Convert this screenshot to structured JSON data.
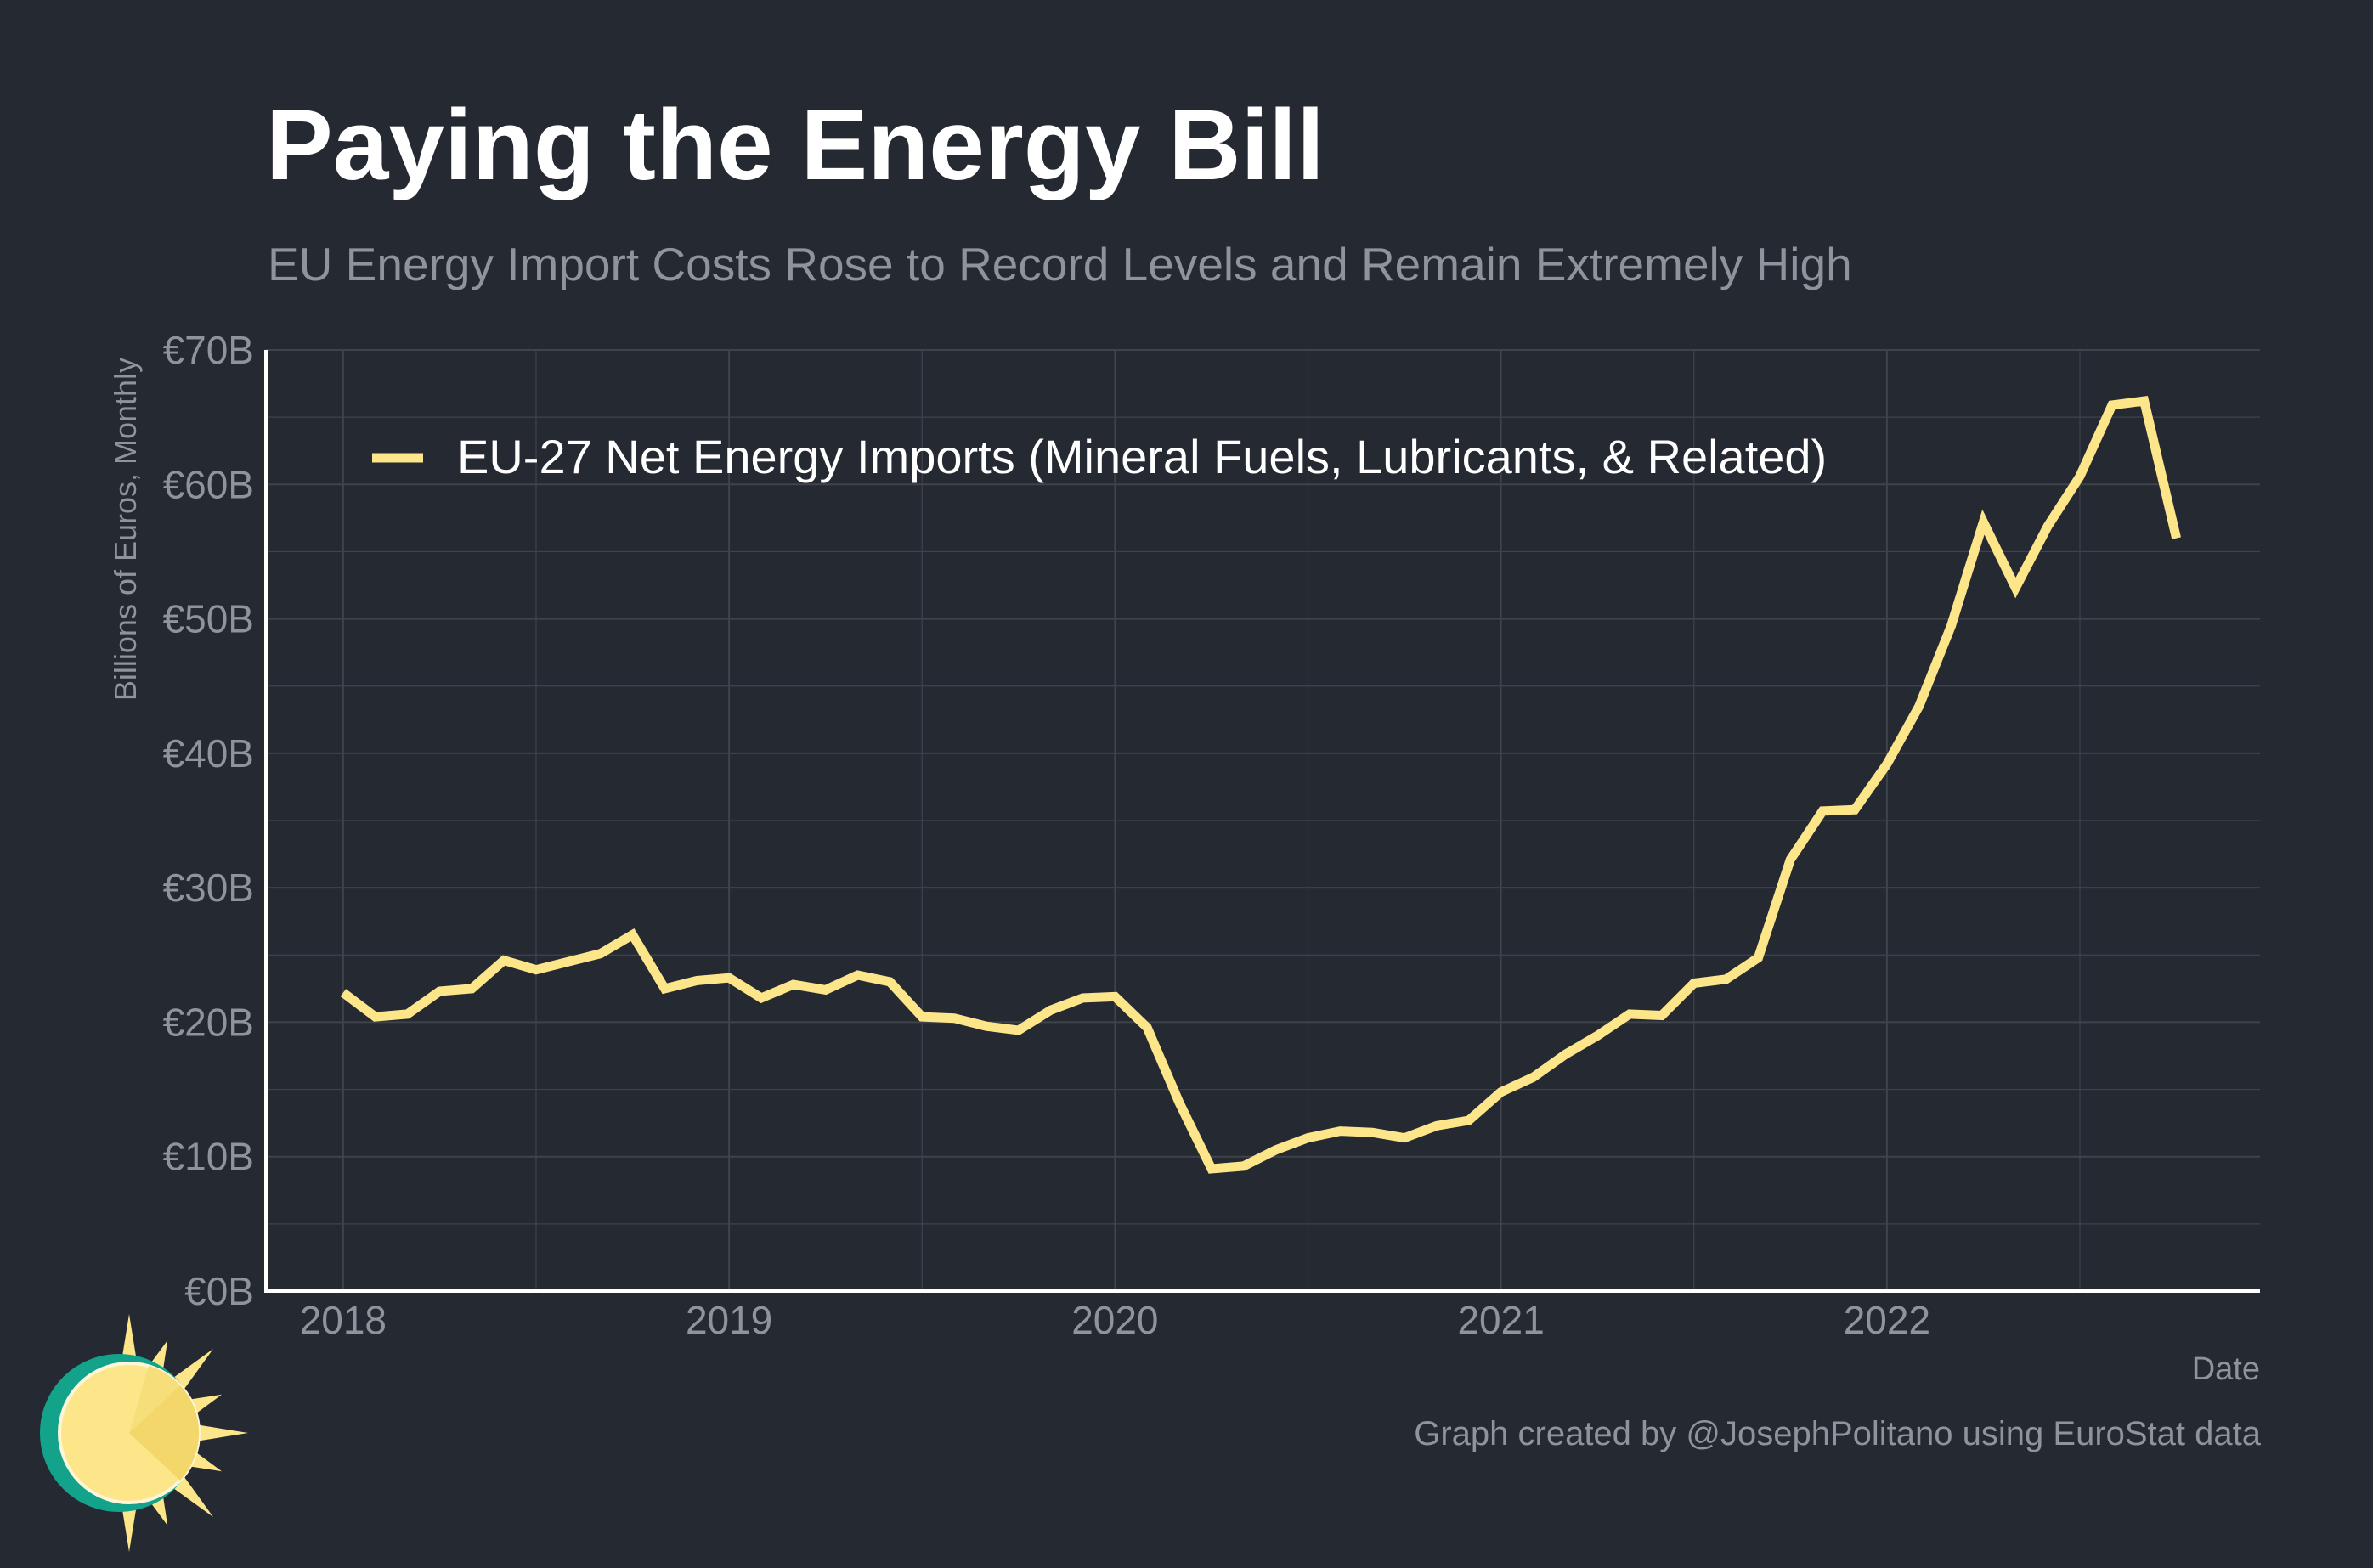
{
  "title": "Paying the Energy Bill",
  "subtitle": "EU Energy Import Costs Rose to Record Levels and Remain Extremely High",
  "credit": "Graph created by @JosephPolitano using EuroStat data",
  "colors": {
    "background": "#252932",
    "series": "#fde68a",
    "grid": "#3f434c",
    "axis": "#ffffff",
    "text_muted": "#8f939b"
  },
  "chart_data": {
    "type": "line",
    "title": "Paying the Energy Bill",
    "subtitle": "EU Energy Import Costs Rose to Record Levels and Remain Extremely High",
    "xlabel": "Date",
    "ylabel": "Billions of Euros, Monthly",
    "ylim": [
      0,
      70
    ],
    "y_ticks": [
      0,
      10,
      20,
      30,
      40,
      50,
      60,
      70
    ],
    "y_tick_labels": [
      "€0B",
      "€10B",
      "€20B",
      "€30B",
      "€40B",
      "€50B",
      "€60B",
      "€70B"
    ],
    "x_ticks": [
      "2018-01",
      "2019-01",
      "2020-01",
      "2021-01",
      "2022-01"
    ],
    "x_tick_labels": [
      "2018",
      "2019",
      "2020",
      "2021",
      "2022"
    ],
    "grid": true,
    "legend_position": "top-left",
    "series": [
      {
        "name": "EU-27 Net Energy Imports (Mineral Fuels, Lubricants, & Related)",
        "color": "#fde68a",
        "x": [
          "2018-01",
          "2018-02",
          "2018-03",
          "2018-04",
          "2018-05",
          "2018-06",
          "2018-07",
          "2018-08",
          "2018-09",
          "2018-10",
          "2018-11",
          "2018-12",
          "2019-01",
          "2019-02",
          "2019-03",
          "2019-04",
          "2019-05",
          "2019-06",
          "2019-07",
          "2019-08",
          "2019-09",
          "2019-10",
          "2019-11",
          "2019-12",
          "2020-01",
          "2020-02",
          "2020-03",
          "2020-04",
          "2020-05",
          "2020-06",
          "2020-07",
          "2020-08",
          "2020-09",
          "2020-10",
          "2020-11",
          "2020-12",
          "2021-01",
          "2021-02",
          "2021-03",
          "2021-04",
          "2021-05",
          "2021-06",
          "2021-07",
          "2021-08",
          "2021-09",
          "2021-10",
          "2021-11",
          "2021-12",
          "2022-01",
          "2022-02",
          "2022-03",
          "2022-04",
          "2022-05",
          "2022-06",
          "2022-07",
          "2022-08",
          "2022-09",
          "2022-10"
        ],
        "values": [
          22.2,
          20.4,
          20.6,
          22.3,
          22.5,
          24.6,
          23.9,
          24.5,
          25.1,
          26.5,
          22.5,
          23.1,
          23.3,
          21.8,
          22.8,
          22.4,
          23.5,
          23.0,
          20.4,
          20.3,
          19.7,
          19.4,
          20.9,
          21.8,
          21.9,
          19.6,
          14.0,
          9.1,
          9.3,
          10.5,
          11.4,
          11.9,
          11.8,
          11.4,
          12.3,
          12.7,
          14.8,
          15.9,
          17.6,
          19.0,
          20.6,
          20.5,
          22.9,
          23.2,
          24.8,
          32.1,
          35.7,
          35.8,
          39.2,
          43.5,
          49.5,
          57.2,
          52.3,
          56.9,
          60.6,
          65.9,
          66.2,
          56.0
        ]
      }
    ]
  }
}
